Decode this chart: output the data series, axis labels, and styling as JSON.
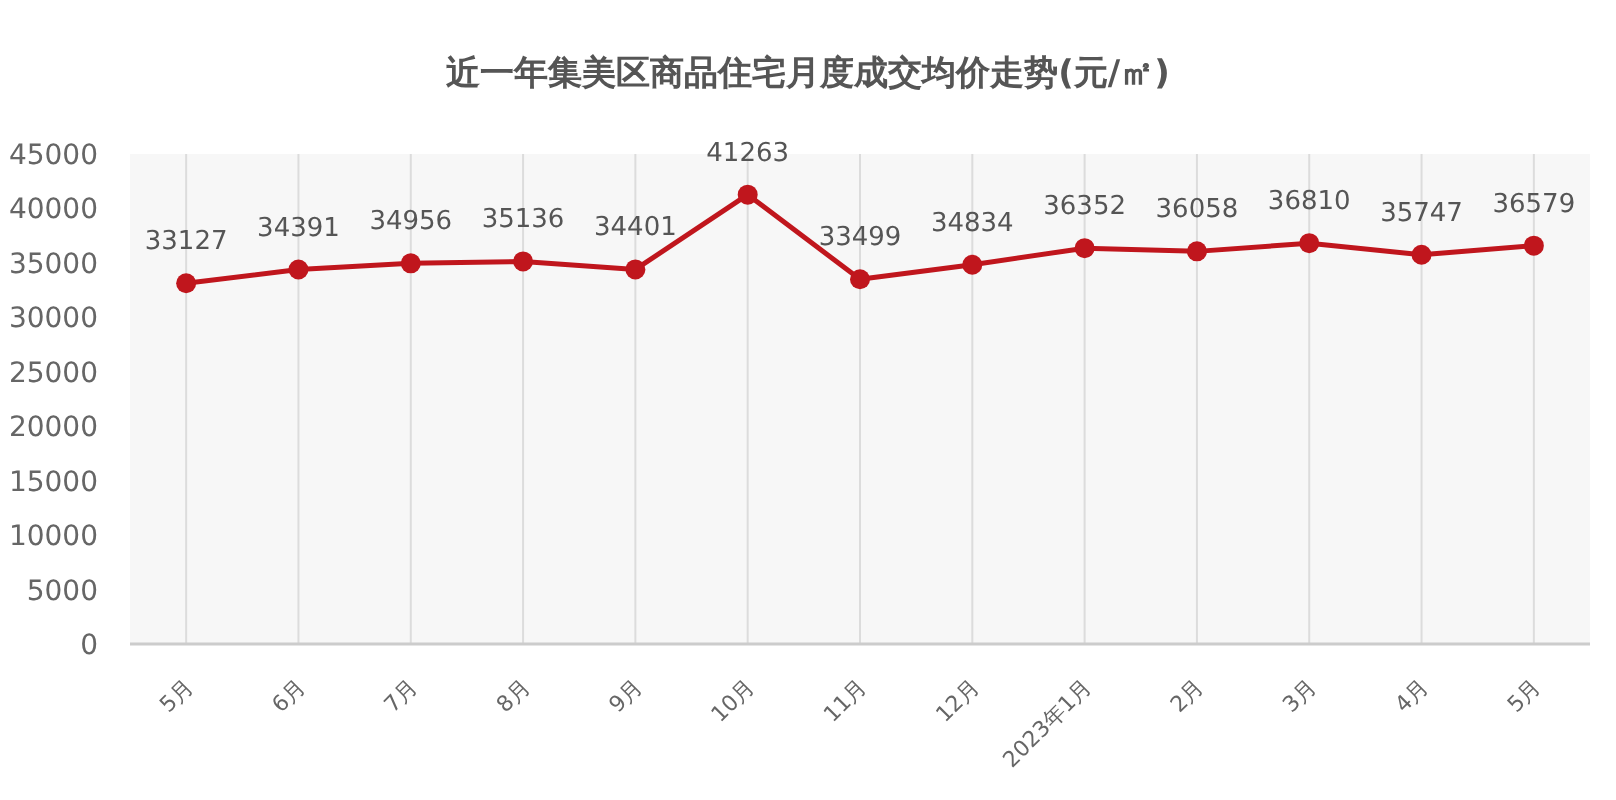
{
  "chart_data": {
    "type": "line",
    "title": "近一年集美区商品住宅月度成交均价走势(元/㎡)",
    "categories": [
      "5月",
      "6月",
      "7月",
      "8月",
      "9月",
      "10月",
      "11月",
      "12月",
      "2023年1月",
      "2月",
      "3月",
      "4月",
      "5月"
    ],
    "series": [
      {
        "color": "#c0161d",
        "values": [
          33127,
          34391,
          34956,
          35136,
          34401,
          41263,
          33499,
          34834,
          36352,
          36058,
          36810,
          35747,
          36579
        ]
      }
    ],
    "ylim": [
      0,
      45000
    ],
    "yticks": [
      0,
      5000,
      10000,
      15000,
      20000,
      25000,
      30000,
      35000,
      40000,
      45000
    ],
    "grid": "x",
    "marker": "circle",
    "line_style": "solid",
    "data_labels": true
  }
}
